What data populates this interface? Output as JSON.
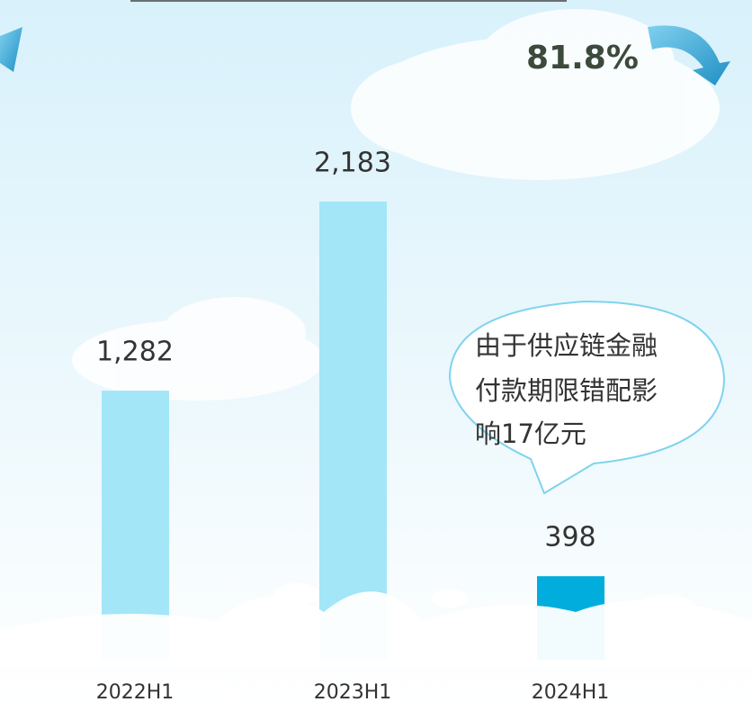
{
  "chart_data": {
    "type": "bar",
    "categories": [
      "2022H1",
      "2023H1",
      "2024H1"
    ],
    "values": [
      1282,
      2183,
      398
    ],
    "value_labels": [
      "1,282",
      "2,183",
      "398"
    ],
    "colors": [
      "#a2e6f8",
      "#a2e6f8",
      "#00addc"
    ],
    "annotation": "81.8%",
    "callout": [
      "由于供应链金融",
      "付款期限错配影",
      "响17亿元"
    ]
  }
}
